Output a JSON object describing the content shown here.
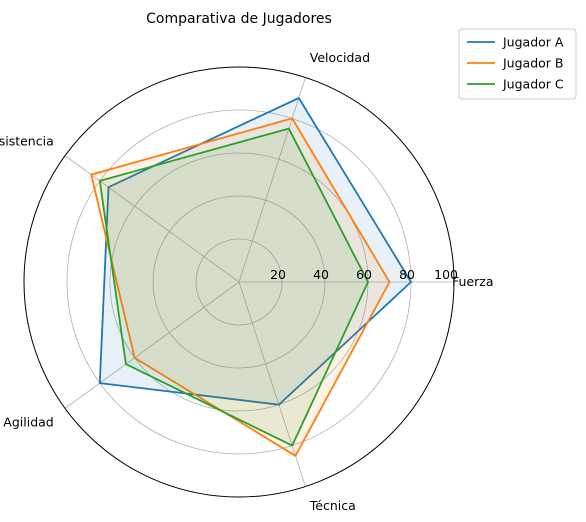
{
  "chart_data": {
    "type": "radar",
    "title": "Comparativa de Jugadores",
    "axes": [
      "Fuerza",
      "Velocidad",
      "Resistencia",
      "Agilidad",
      "Técnica"
    ],
    "rlim": [
      0,
      100
    ],
    "rticks": [
      20,
      40,
      60,
      80,
      100
    ],
    "grid": true,
    "legend_position": "top-right",
    "series": [
      {
        "name": "Jugador A",
        "values": [
          80,
          90,
          75,
          80,
          60
        ],
        "color": "#1f77b4"
      },
      {
        "name": "Jugador B",
        "values": [
          70,
          80,
          85,
          60,
          85
        ],
        "color": "#ff7f0e"
      },
      {
        "name": "Jugador C",
        "values": [
          60,
          75,
          80,
          65,
          80
        ],
        "color": "#2ca02c"
      }
    ]
  }
}
